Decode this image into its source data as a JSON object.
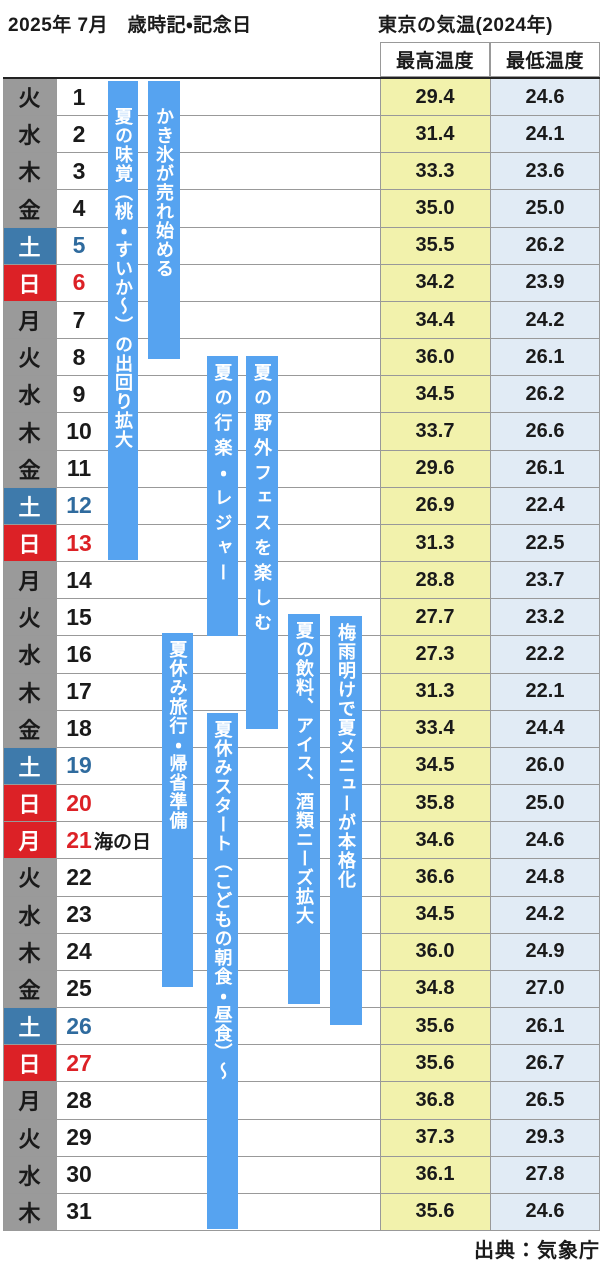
{
  "header": {
    "title_left": "2025年 7月　歳時記・記念日",
    "title_right": "東京の気温(2024年)",
    "col_max": "最高温度",
    "col_min": "最低温度"
  },
  "footer": {
    "source": "出典：気象庁"
  },
  "colors": {
    "weekday_bg": "#9a9a9a",
    "saturday_bg": "#3e7aab",
    "sunday_bg": "#dc2126",
    "saturday_text": "#2f6b9e",
    "sunday_text": "#dc2126",
    "event_bar": "#56a3f0",
    "max_col_bg": "#f2f2ac",
    "min_col_bg": "#e1ebf5"
  },
  "days": [
    {
      "date": 1,
      "dow": "火",
      "type": "weekday",
      "note": "",
      "max": "29.4",
      "min": "24.6"
    },
    {
      "date": 2,
      "dow": "水",
      "type": "weekday",
      "note": "",
      "max": "31.4",
      "min": "24.1"
    },
    {
      "date": 3,
      "dow": "木",
      "type": "weekday",
      "note": "",
      "max": "33.3",
      "min": "23.6"
    },
    {
      "date": 4,
      "dow": "金",
      "type": "weekday",
      "note": "",
      "max": "35.0",
      "min": "25.0"
    },
    {
      "date": 5,
      "dow": "土",
      "type": "saturday",
      "note": "",
      "max": "35.5",
      "min": "26.2"
    },
    {
      "date": 6,
      "dow": "日",
      "type": "sunday",
      "note": "",
      "max": "34.2",
      "min": "23.9"
    },
    {
      "date": 7,
      "dow": "月",
      "type": "weekday",
      "note": "",
      "max": "34.4",
      "min": "24.2"
    },
    {
      "date": 8,
      "dow": "火",
      "type": "weekday",
      "note": "",
      "max": "36.0",
      "min": "26.1"
    },
    {
      "date": 9,
      "dow": "水",
      "type": "weekday",
      "note": "",
      "max": "34.5",
      "min": "26.2"
    },
    {
      "date": 10,
      "dow": "木",
      "type": "weekday",
      "note": "",
      "max": "33.7",
      "min": "26.6"
    },
    {
      "date": 11,
      "dow": "金",
      "type": "weekday",
      "note": "",
      "max": "29.6",
      "min": "26.1"
    },
    {
      "date": 12,
      "dow": "土",
      "type": "saturday",
      "note": "",
      "max": "26.9",
      "min": "22.4"
    },
    {
      "date": 13,
      "dow": "日",
      "type": "sunday",
      "note": "",
      "max": "31.3",
      "min": "22.5"
    },
    {
      "date": 14,
      "dow": "月",
      "type": "weekday",
      "note": "",
      "max": "28.8",
      "min": "23.7"
    },
    {
      "date": 15,
      "dow": "火",
      "type": "weekday",
      "note": "",
      "max": "27.7",
      "min": "23.2"
    },
    {
      "date": 16,
      "dow": "水",
      "type": "weekday",
      "note": "",
      "max": "27.3",
      "min": "22.2"
    },
    {
      "date": 17,
      "dow": "木",
      "type": "weekday",
      "note": "",
      "max": "31.3",
      "min": "22.1"
    },
    {
      "date": 18,
      "dow": "金",
      "type": "weekday",
      "note": "",
      "max": "33.4",
      "min": "24.4"
    },
    {
      "date": 19,
      "dow": "土",
      "type": "saturday",
      "note": "",
      "max": "34.5",
      "min": "26.0"
    },
    {
      "date": 20,
      "dow": "日",
      "type": "sunday",
      "note": "",
      "max": "35.8",
      "min": "25.0"
    },
    {
      "date": 21,
      "dow": "月",
      "type": "holiday",
      "note": "海の日",
      "max": "34.6",
      "min": "24.6"
    },
    {
      "date": 22,
      "dow": "火",
      "type": "weekday",
      "note": "",
      "max": "36.6",
      "min": "24.8"
    },
    {
      "date": 23,
      "dow": "水",
      "type": "weekday",
      "note": "",
      "max": "34.5",
      "min": "24.2"
    },
    {
      "date": 24,
      "dow": "木",
      "type": "weekday",
      "note": "",
      "max": "36.0",
      "min": "24.9"
    },
    {
      "date": 25,
      "dow": "金",
      "type": "weekday",
      "note": "",
      "max": "34.8",
      "min": "27.0"
    },
    {
      "date": 26,
      "dow": "土",
      "type": "saturday",
      "note": "",
      "max": "35.6",
      "min": "26.1"
    },
    {
      "date": 27,
      "dow": "日",
      "type": "sunday",
      "note": "",
      "max": "35.6",
      "min": "26.7"
    },
    {
      "date": 28,
      "dow": "月",
      "type": "weekday",
      "note": "",
      "max": "36.8",
      "min": "26.5"
    },
    {
      "date": 29,
      "dow": "火",
      "type": "weekday",
      "note": "",
      "max": "37.3",
      "min": "29.3"
    },
    {
      "date": 30,
      "dow": "水",
      "type": "weekday",
      "note": "",
      "max": "36.1",
      "min": "27.8"
    },
    {
      "date": 31,
      "dow": "木",
      "type": "weekday",
      "note": "",
      "max": "35.6",
      "min": "24.6"
    }
  ],
  "events": [
    {
      "label": "夏の味覚（桃・すいか～）の出回り拡大",
      "lane": "a",
      "from": 1,
      "to": 14
    },
    {
      "label": "かき氷が売れ始める",
      "lane": "b",
      "from": 1,
      "to": 8.6
    },
    {
      "label": "夏の行楽・レジャー",
      "lane": "d",
      "from": 8.4,
      "to": 16.05
    },
    {
      "label": "夏の野外フェスを楽しむ",
      "lane": "e",
      "from": 8.4,
      "to": 18.55
    },
    {
      "label": "夏休み旅行・帰省準備",
      "lane": "c",
      "from": 15.85,
      "to": 25.5
    },
    {
      "label": "夏休みスタート（こどもの朝食・昼食）～",
      "lane": "d",
      "from": 18,
      "to": 32
    },
    {
      "label": "夏の飲料、アイス、酒類ニーズ拡大",
      "lane": "f",
      "from": 15.35,
      "to": 25.95
    },
    {
      "label": "梅雨明けで夏メニューが本格化",
      "lane": "g",
      "from": 15.4,
      "to": 26.5
    }
  ]
}
